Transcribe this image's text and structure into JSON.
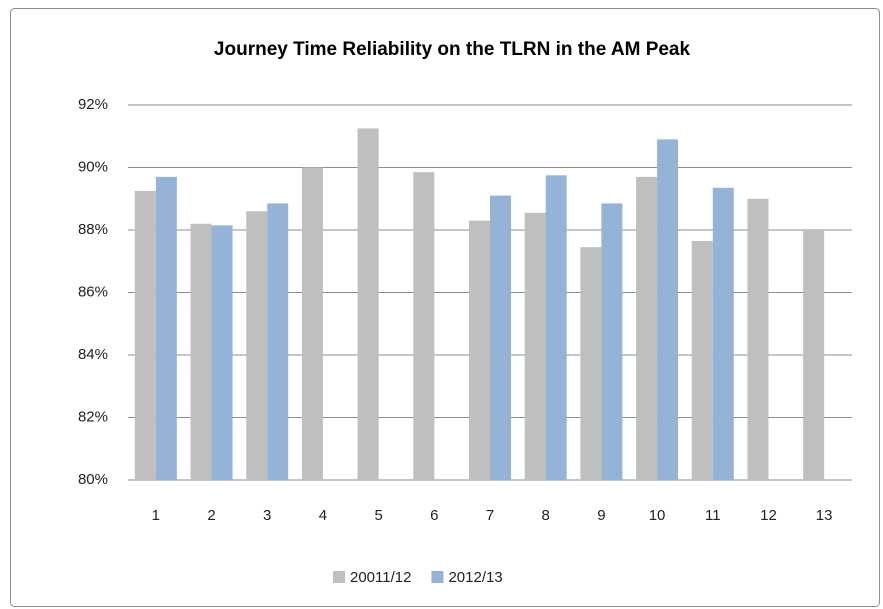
{
  "chart_data": {
    "type": "bar",
    "title": "Journey Time Reliability on  the TLRN in the AM Peak",
    "categories": [
      "1",
      "2",
      "3",
      "4",
      "5",
      "6",
      "7",
      "8",
      "9",
      "10",
      "11",
      "12",
      "13"
    ],
    "series": [
      {
        "name": "20011/12",
        "color": "#bfbfbf",
        "values": [
          89.25,
          88.2,
          88.6,
          90.0,
          91.25,
          89.85,
          88.3,
          88.55,
          87.45,
          89.7,
          87.65,
          89.0,
          88.0
        ]
      },
      {
        "name": "2012/13",
        "color": "#95b3d7",
        "values": [
          89.7,
          88.15,
          88.85,
          null,
          null,
          null,
          89.1,
          89.75,
          88.85,
          90.9,
          89.35,
          null,
          null
        ]
      }
    ],
    "ylim": [
      80,
      92
    ],
    "yticks": [
      {
        "value": 80,
        "label": "80%"
      },
      {
        "value": 82,
        "label": "82%"
      },
      {
        "value": 84,
        "label": "84%"
      },
      {
        "value": 86,
        "label": "86%"
      },
      {
        "value": 88,
        "label": "88%"
      },
      {
        "value": 90,
        "label": "90%"
      },
      {
        "value": 92,
        "label": "92%"
      }
    ],
    "grid": true,
    "legend": "bottom"
  }
}
